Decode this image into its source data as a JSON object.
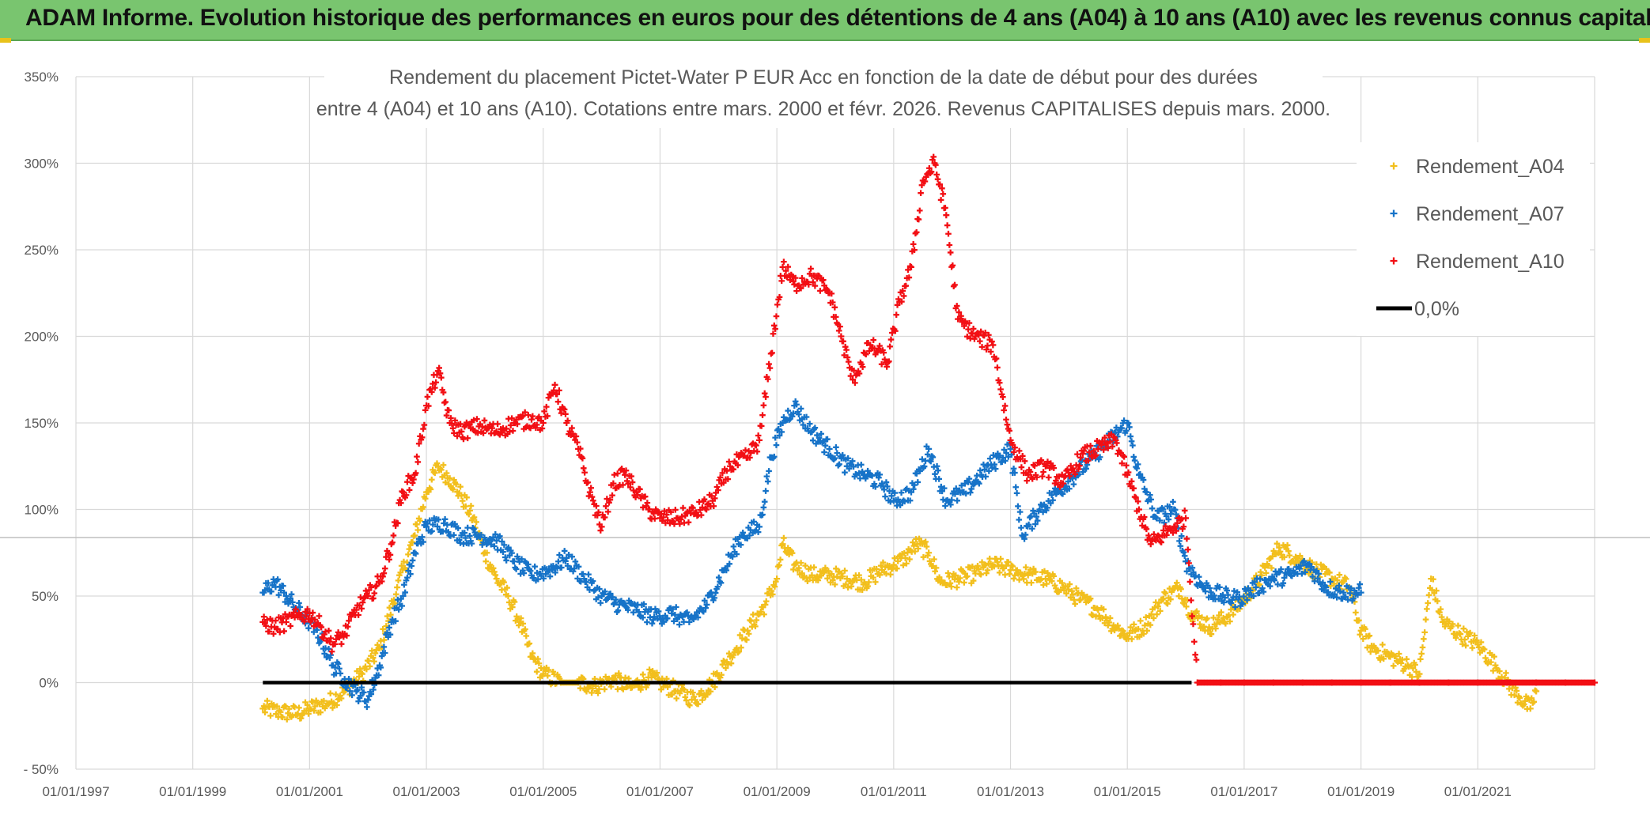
{
  "header": {
    "title": "ADAM Informe. Evolution historique des performances en euros pour des détentions de 4 ans (A04) à 10 ans (A10) avec les revenus connus capitalisés"
  },
  "chart_data": {
    "type": "scatter",
    "title_line1": "Rendement du placement Pictet-Water P EUR Acc en fonction de la date de début pour des durées",
    "title_line2": "entre 4 (A04) et 10 ans (A10). Cotations entre mars. 2000 et févr. 2026. Revenus CAPITALISES depuis mars. 2000.",
    "xlabel": "",
    "ylabel": "",
    "xlim": [
      1997.0,
      2023.0
    ],
    "ylim": [
      -50,
      350
    ],
    "grid": true,
    "legend_position": "top-right",
    "x_ticks": [
      {
        "value": 1997.0,
        "label": "01/01/1997"
      },
      {
        "value": 1999.0,
        "label": "01/01/1999"
      },
      {
        "value": 2001.0,
        "label": "01/01/2001"
      },
      {
        "value": 2003.0,
        "label": "01/01/2003"
      },
      {
        "value": 2005.0,
        "label": "01/01/2005"
      },
      {
        "value": 2007.0,
        "label": "01/01/2007"
      },
      {
        "value": 2009.0,
        "label": "01/01/2009"
      },
      {
        "value": 2011.0,
        "label": "01/01/2011"
      },
      {
        "value": 2013.0,
        "label": "01/01/2013"
      },
      {
        "value": 2015.0,
        "label": "01/01/2015"
      },
      {
        "value": 2017.0,
        "label": "01/01/2017"
      },
      {
        "value": 2019.0,
        "label": "01/01/2019"
      },
      {
        "value": 2021.0,
        "label": "01/01/2021"
      }
    ],
    "y_ticks": [
      {
        "value": -50,
        "label": "- 50%"
      },
      {
        "value": 0,
        "label": "0%"
      },
      {
        "value": 50,
        "label": "50%"
      },
      {
        "value": 100,
        "label": "100%"
      },
      {
        "value": 150,
        "label": "150%"
      },
      {
        "value": 200,
        "label": "200%"
      },
      {
        "value": 250,
        "label": "250%"
      },
      {
        "value": 300,
        "label": "300%"
      },
      {
        "value": 350,
        "label": "350%"
      }
    ],
    "series": [
      {
        "name": "Rendement_A04",
        "color": "#f2bf1d",
        "marker": "+",
        "points": [
          [
            2000.2,
            -15
          ],
          [
            2000.5,
            -17
          ],
          [
            2000.8,
            -18
          ],
          [
            2001.0,
            -15
          ],
          [
            2001.3,
            -12
          ],
          [
            2001.6,
            -5
          ],
          [
            2001.9,
            5
          ],
          [
            2002.2,
            20
          ],
          [
            2002.5,
            55
          ],
          [
            2002.8,
            85
          ],
          [
            2003.0,
            110
          ],
          [
            2003.2,
            125
          ],
          [
            2003.4,
            118
          ],
          [
            2003.6,
            108
          ],
          [
            2003.8,
            95
          ],
          [
            2004.0,
            75
          ],
          [
            2004.2,
            60
          ],
          [
            2004.4,
            50
          ],
          [
            2004.6,
            35
          ],
          [
            2004.8,
            15
          ],
          [
            2005.0,
            5
          ],
          [
            2005.3,
            0
          ],
          [
            2005.6,
            0
          ],
          [
            2005.9,
            -2
          ],
          [
            2006.2,
            2
          ],
          [
            2006.5,
            -3
          ],
          [
            2006.8,
            3
          ],
          [
            2007.0,
            0
          ],
          [
            2007.3,
            -5
          ],
          [
            2007.6,
            -10
          ],
          [
            2007.9,
            0
          ],
          [
            2008.2,
            15
          ],
          [
            2008.5,
            30
          ],
          [
            2008.8,
            45
          ],
          [
            2009.0,
            60
          ],
          [
            2009.1,
            80
          ],
          [
            2009.3,
            68
          ],
          [
            2009.6,
            62
          ],
          [
            2009.9,
            62
          ],
          [
            2010.2,
            60
          ],
          [
            2010.5,
            58
          ],
          [
            2010.8,
            65
          ],
          [
            2011.0,
            68
          ],
          [
            2011.2,
            72
          ],
          [
            2011.4,
            80
          ],
          [
            2011.6,
            75
          ],
          [
            2011.8,
            58
          ],
          [
            2012.1,
            60
          ],
          [
            2012.4,
            63
          ],
          [
            2012.7,
            68
          ],
          [
            2013.0,
            65
          ],
          [
            2013.3,
            62
          ],
          [
            2013.6,
            60
          ],
          [
            2013.9,
            55
          ],
          [
            2014.2,
            48
          ],
          [
            2014.5,
            42
          ],
          [
            2014.8,
            32
          ],
          [
            2015.0,
            27
          ],
          [
            2015.3,
            33
          ],
          [
            2015.6,
            48
          ],
          [
            2015.9,
            55
          ],
          [
            2016.1,
            40
          ],
          [
            2016.4,
            32
          ],
          [
            2016.7,
            38
          ],
          [
            2017.0,
            48
          ],
          [
            2017.3,
            62
          ],
          [
            2017.6,
            78
          ],
          [
            2017.9,
            72
          ],
          [
            2018.2,
            65
          ],
          [
            2018.5,
            60
          ],
          [
            2018.8,
            55
          ],
          [
            2019.0,
            30
          ],
          [
            2019.2,
            20
          ],
          [
            2019.5,
            15
          ],
          [
            2019.8,
            10
          ],
          [
            2020.0,
            5
          ],
          [
            2020.2,
            60
          ],
          [
            2020.4,
            35
          ],
          [
            2020.7,
            28
          ],
          [
            2021.0,
            22
          ],
          [
            2021.3,
            10
          ],
          [
            2021.5,
            0
          ],
          [
            2021.7,
            -8
          ],
          [
            2021.9,
            -15
          ],
          [
            2022.0,
            -5
          ]
        ]
      },
      {
        "name": "Rendement_A07",
        "color": "#1673c8",
        "marker": "+",
        "points": [
          [
            2000.2,
            52
          ],
          [
            2000.4,
            58
          ],
          [
            2000.6,
            50
          ],
          [
            2000.8,
            42
          ],
          [
            2001.0,
            35
          ],
          [
            2001.2,
            25
          ],
          [
            2001.4,
            10
          ],
          [
            2001.6,
            2
          ],
          [
            2001.8,
            -5
          ],
          [
            2002.0,
            -10
          ],
          [
            2002.2,
            10
          ],
          [
            2002.4,
            35
          ],
          [
            2002.6,
            50
          ],
          [
            2002.8,
            75
          ],
          [
            2003.0,
            90
          ],
          [
            2003.3,
            92
          ],
          [
            2003.6,
            85
          ],
          [
            2003.9,
            85
          ],
          [
            2004.2,
            82
          ],
          [
            2004.5,
            70
          ],
          [
            2004.8,
            62
          ],
          [
            2005.1,
            65
          ],
          [
            2005.4,
            72
          ],
          [
            2005.7,
            60
          ],
          [
            2006.0,
            50
          ],
          [
            2006.3,
            45
          ],
          [
            2006.6,
            42
          ],
          [
            2006.9,
            38
          ],
          [
            2007.2,
            40
          ],
          [
            2007.5,
            35
          ],
          [
            2007.8,
            45
          ],
          [
            2008.1,
            65
          ],
          [
            2008.4,
            85
          ],
          [
            2008.7,
            90
          ],
          [
            2008.9,
            130
          ],
          [
            2009.1,
            150
          ],
          [
            2009.3,
            160
          ],
          [
            2009.6,
            145
          ],
          [
            2009.9,
            135
          ],
          [
            2010.2,
            125
          ],
          [
            2010.5,
            120
          ],
          [
            2010.8,
            115
          ],
          [
            2011.0,
            105
          ],
          [
            2011.3,
            110
          ],
          [
            2011.6,
            135
          ],
          [
            2011.9,
            105
          ],
          [
            2012.2,
            110
          ],
          [
            2012.5,
            120
          ],
          [
            2012.8,
            130
          ],
          [
            2013.0,
            135
          ],
          [
            2013.2,
            85
          ],
          [
            2013.5,
            100
          ],
          [
            2013.8,
            110
          ],
          [
            2014.1,
            120
          ],
          [
            2014.4,
            130
          ],
          [
            2014.7,
            140
          ],
          [
            2015.0,
            150
          ],
          [
            2015.2,
            120
          ],
          [
            2015.5,
            95
          ],
          [
            2015.8,
            100
          ],
          [
            2016.0,
            70
          ],
          [
            2016.3,
            55
          ],
          [
            2016.6,
            50
          ],
          [
            2016.9,
            48
          ],
          [
            2017.2,
            55
          ],
          [
            2017.5,
            60
          ],
          [
            2017.8,
            62
          ],
          [
            2018.1,
            68
          ],
          [
            2018.4,
            55
          ],
          [
            2018.7,
            52
          ],
          [
            2019.0,
            52
          ]
        ]
      },
      {
        "name": "Rendement_A10",
        "color": "#f20f14",
        "marker": "+",
        "points": [
          [
            2000.2,
            35
          ],
          [
            2000.4,
            32
          ],
          [
            2000.6,
            35
          ],
          [
            2000.8,
            38
          ],
          [
            2001.0,
            40
          ],
          [
            2001.2,
            32
          ],
          [
            2001.4,
            22
          ],
          [
            2001.6,
            28
          ],
          [
            2001.8,
            42
          ],
          [
            2002.0,
            50
          ],
          [
            2002.2,
            58
          ],
          [
            2002.4,
            80
          ],
          [
            2002.6,
            110
          ],
          [
            2002.8,
            120
          ],
          [
            2003.0,
            160
          ],
          [
            2003.2,
            180
          ],
          [
            2003.4,
            150
          ],
          [
            2003.6,
            145
          ],
          [
            2003.9,
            148
          ],
          [
            2004.2,
            145
          ],
          [
            2004.5,
            150
          ],
          [
            2004.8,
            152
          ],
          [
            2005.0,
            150
          ],
          [
            2005.2,
            172
          ],
          [
            2005.4,
            150
          ],
          [
            2005.6,
            135
          ],
          [
            2005.8,
            110
          ],
          [
            2006.0,
            90
          ],
          [
            2006.2,
            115
          ],
          [
            2006.4,
            120
          ],
          [
            2006.6,
            110
          ],
          [
            2006.8,
            100
          ],
          [
            2007.0,
            95
          ],
          [
            2007.3,
            95
          ],
          [
            2007.6,
            98
          ],
          [
            2007.9,
            105
          ],
          [
            2008.2,
            125
          ],
          [
            2008.5,
            130
          ],
          [
            2008.7,
            140
          ],
          [
            2008.9,
            190
          ],
          [
            2009.1,
            240
          ],
          [
            2009.3,
            230
          ],
          [
            2009.6,
            235
          ],
          [
            2009.9,
            225
          ],
          [
            2010.1,
            200
          ],
          [
            2010.3,
            175
          ],
          [
            2010.6,
            195
          ],
          [
            2010.9,
            185
          ],
          [
            2011.1,
            220
          ],
          [
            2011.3,
            240
          ],
          [
            2011.5,
            290
          ],
          [
            2011.7,
            300
          ],
          [
            2011.9,
            270
          ],
          [
            2012.1,
            210
          ],
          [
            2012.4,
            200
          ],
          [
            2012.7,
            195
          ],
          [
            2013.0,
            140
          ],
          [
            2013.3,
            120
          ],
          [
            2013.6,
            125
          ],
          [
            2013.9,
            115
          ],
          [
            2014.2,
            130
          ],
          [
            2014.5,
            135
          ],
          [
            2014.8,
            140
          ],
          [
            2015.0,
            120
          ],
          [
            2015.2,
            100
          ],
          [
            2015.4,
            80
          ],
          [
            2015.6,
            85
          ],
          [
            2015.8,
            90
          ],
          [
            2016.0,
            95
          ],
          [
            2016.2,
            0
          ],
          [
            2016.6,
            0
          ],
          [
            2017.0,
            0
          ],
          [
            2017.5,
            0
          ],
          [
            2018.0,
            0
          ],
          [
            2018.5,
            0
          ],
          [
            2019.0,
            0
          ],
          [
            2019.5,
            0
          ],
          [
            2020.0,
            0
          ],
          [
            2020.5,
            0
          ],
          [
            2021.0,
            0
          ],
          [
            2021.5,
            0
          ],
          [
            2022.0,
            0
          ],
          [
            2022.5,
            0
          ],
          [
            2023.0,
            0
          ]
        ]
      },
      {
        "name": "0,0%",
        "color": "#000000",
        "marker": "line",
        "points": [
          [
            2000.2,
            0
          ],
          [
            2016.1,
            0
          ]
        ]
      }
    ]
  }
}
